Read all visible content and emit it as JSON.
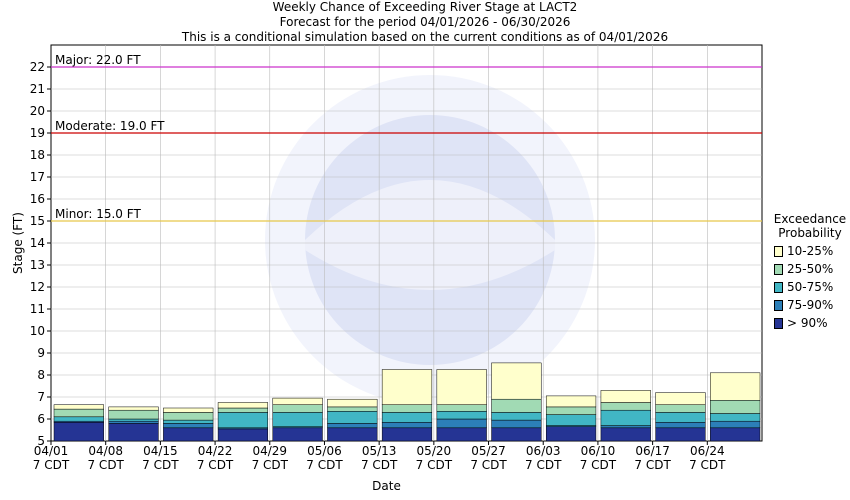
{
  "titles": [
    "Weekly Chance of Exceeding River Stage at LACT2",
    "Forecast for the period 04/01/2026 - 06/30/2026",
    "This is a conditional simulation based on the current conditions as of 04/01/2026"
  ],
  "colors": {
    "p10_25": "#ffffcc",
    "p25_50": "#a1dab4",
    "p50_75": "#41b6c4",
    "p75_90": "#2c7fb8",
    "p90": "#253494",
    "major": "#cc33cc",
    "moderate": "#cc0000",
    "minor": "#e6c84a",
    "grid": "#bbbbbb"
  },
  "legend": {
    "title_line1": "Exceedance",
    "title_line2": "Probability",
    "items": [
      {
        "label": "10-25%",
        "color": "#ffffcc"
      },
      {
        "label": "25-50%",
        "color": "#a1dab4"
      },
      {
        "label": "50-75%",
        "color": "#41b6c4"
      },
      {
        "label": "75-90%",
        "color": "#2c7fb8"
      },
      {
        "label": "> 90%",
        "color": "#253494"
      }
    ]
  },
  "chart_data": {
    "type": "bar",
    "title": "Weekly Chance of Exceeding River Stage at LACT2",
    "xlabel": "Date",
    "ylabel": "Stage (FT)",
    "ylim": [
      5,
      23
    ],
    "yticks": [
      5,
      6,
      7,
      8,
      9,
      10,
      11,
      12,
      13,
      14,
      15,
      16,
      17,
      18,
      19,
      20,
      21,
      22
    ],
    "grid": true,
    "legend_position": "right",
    "categories": [
      "04/01 7 CDT",
      "04/08 7 CDT",
      "04/15 7 CDT",
      "04/22 7 CDT",
      "04/29 7 CDT",
      "05/06 7 CDT",
      "05/13 7 CDT",
      "05/20 7 CDT",
      "05/27 7 CDT",
      "06/03 7 CDT",
      "06/10 7 CDT",
      "06/17 7 CDT",
      "06/24 7 CDT"
    ],
    "tick_labels": [
      {
        "date": "04/01",
        "time": "7 CDT"
      },
      {
        "date": "04/08",
        "time": "7 CDT"
      },
      {
        "date": "04/15",
        "time": "7 CDT"
      },
      {
        "date": "04/22",
        "time": "7 CDT"
      },
      {
        "date": "04/29",
        "time": "7 CDT"
      },
      {
        "date": "05/06",
        "time": "7 CDT"
      },
      {
        "date": "05/13",
        "time": "7 CDT"
      },
      {
        "date": "05/20",
        "time": "7 CDT"
      },
      {
        "date": "05/27",
        "time": "7 CDT"
      },
      {
        "date": "06/03",
        "time": "7 CDT"
      },
      {
        "date": "06/10",
        "time": "7 CDT"
      },
      {
        "date": "06/17",
        "time": "7 CDT"
      },
      {
        "date": "06/24",
        "time": "7 CDT"
      }
    ],
    "series": [
      {
        "name": "> 90%",
        "values": [
          5.85,
          5.8,
          5.6,
          5.55,
          5.6,
          5.6,
          5.6,
          5.6,
          5.6,
          5.65,
          5.6,
          5.6,
          5.6
        ]
      },
      {
        "name": "75-90%",
        "values": [
          5.9,
          5.9,
          5.8,
          5.6,
          5.65,
          5.8,
          5.85,
          6.0,
          5.95,
          5.7,
          5.7,
          5.85,
          5.9
        ]
      },
      {
        "name": "50-75%",
        "values": [
          6.1,
          6.0,
          5.95,
          6.3,
          6.3,
          6.35,
          6.3,
          6.35,
          6.3,
          6.2,
          6.4,
          6.3,
          6.25
        ]
      },
      {
        "name": "25-50%",
        "values": [
          6.45,
          6.4,
          6.3,
          6.5,
          6.65,
          6.55,
          6.65,
          6.65,
          6.9,
          6.55,
          6.75,
          6.65,
          6.85
        ]
      },
      {
        "name": "10-25%",
        "values": [
          6.65,
          6.55,
          6.5,
          6.75,
          6.95,
          6.9,
          8.25,
          8.25,
          8.55,
          7.05,
          7.3,
          7.2,
          8.1
        ]
      }
    ],
    "flood_stages": [
      {
        "name": "Major",
        "label": "Major: 22.0 FT",
        "value": 22.0,
        "color": "#cc33cc"
      },
      {
        "name": "Moderate",
        "label": "Moderate: 19.0 FT",
        "value": 19.0,
        "color": "#cc0000"
      },
      {
        "name": "Minor",
        "label": "Minor: 15.0 FT",
        "value": 15.0,
        "color": "#e6c84a"
      }
    ]
  }
}
